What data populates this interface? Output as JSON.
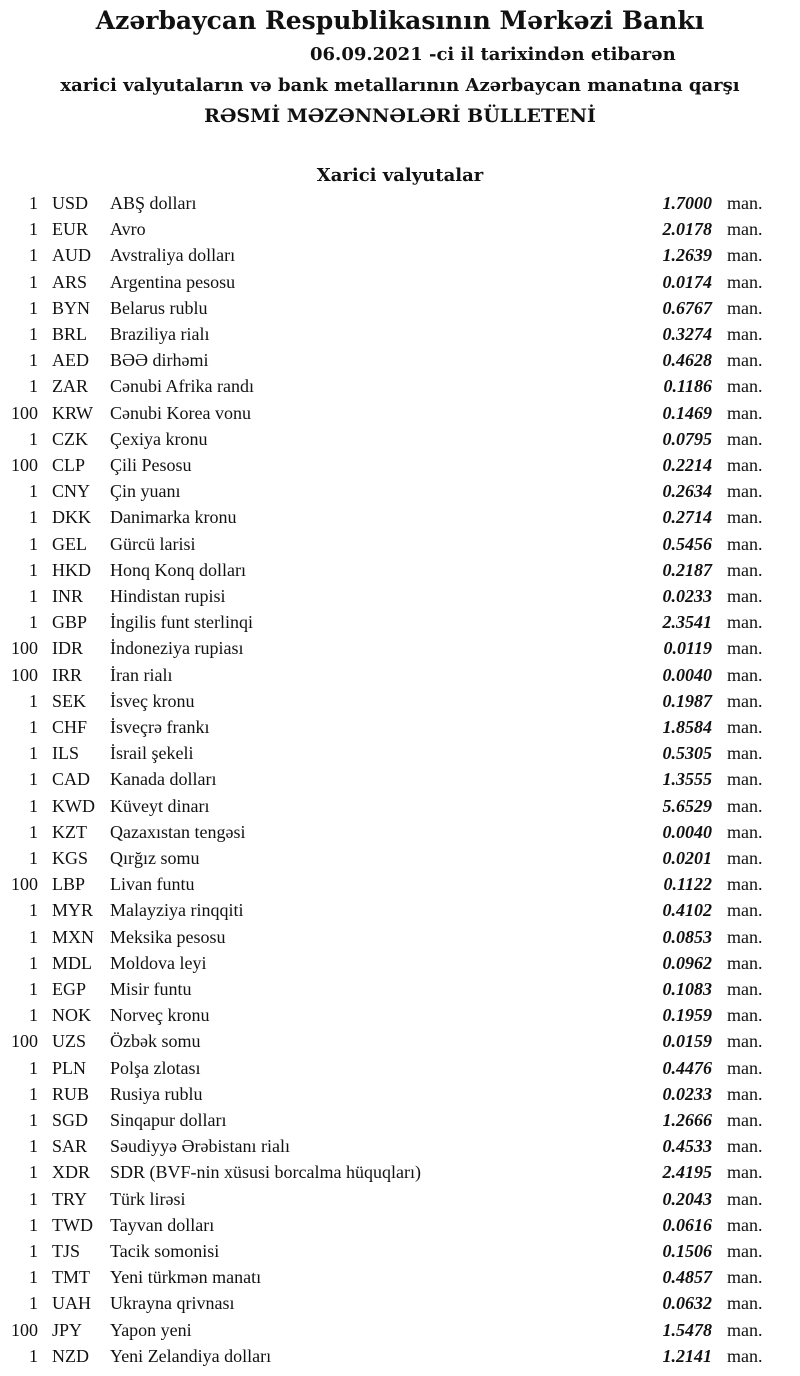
{
  "header": {
    "title": "Azərbaycan Respublikasının Mərkəzi Bankı",
    "date_line": "06.09.2021 -ci il tarixindən etibarən",
    "subtitle": "xarici valyutaların və bank metallarının Azərbaycan manatına qarşı",
    "bulletin": "RƏSMİ MƏZƏNNƏLƏRİ BÜLLETENİ",
    "section": "Xarici valyutalar"
  },
  "rows": [
    {
      "qty": "1",
      "code": "USD",
      "name": "ABŞ dolları",
      "rate": "1.7000",
      "unit": "man."
    },
    {
      "qty": "1",
      "code": "EUR",
      "name": "Avro",
      "rate": "2.0178",
      "unit": "man."
    },
    {
      "qty": "1",
      "code": "AUD",
      "name": "Avstraliya dolları",
      "rate": "1.2639",
      "unit": "man."
    },
    {
      "qty": "1",
      "code": "ARS",
      "name": "Argentina pesosu",
      "rate": "0.0174",
      "unit": "man."
    },
    {
      "qty": "1",
      "code": "BYN",
      "name": "Belarus rublu",
      "rate": "0.6767",
      "unit": "man."
    },
    {
      "qty": "1",
      "code": "BRL",
      "name": "Braziliya rialı",
      "rate": "0.3274",
      "unit": "man."
    },
    {
      "qty": "1",
      "code": "AED",
      "name": "BƏƏ dirhəmi",
      "rate": "0.4628",
      "unit": "man."
    },
    {
      "qty": "1",
      "code": "ZAR",
      "name": "Cənubi Afrika randı",
      "rate": "0.1186",
      "unit": "man."
    },
    {
      "qty": "100",
      "code": "KRW",
      "name": "Cənubi Korea vonu",
      "rate": "0.1469",
      "unit": "man."
    },
    {
      "qty": "1",
      "code": "CZK",
      "name": "Çexiya kronu",
      "rate": "0.0795",
      "unit": "man."
    },
    {
      "qty": "100",
      "code": "CLP",
      "name": "Çili Pesosu",
      "rate": "0.2214",
      "unit": "man."
    },
    {
      "qty": "1",
      "code": "CNY",
      "name": "Çin yuanı",
      "rate": "0.2634",
      "unit": "man."
    },
    {
      "qty": "1",
      "code": "DKK",
      "name": "Danimarka kronu",
      "rate": "0.2714",
      "unit": "man."
    },
    {
      "qty": "1",
      "code": "GEL",
      "name": "Gürcü larisi",
      "rate": "0.5456",
      "unit": "man."
    },
    {
      "qty": "1",
      "code": "HKD",
      "name": "Honq Konq dolları",
      "rate": "0.2187",
      "unit": "man."
    },
    {
      "qty": "1",
      "code": "INR",
      "name": "Hindistan rupisi",
      "rate": "0.0233",
      "unit": "man."
    },
    {
      "qty": "1",
      "code": "GBP",
      "name": "İngilis funt sterlinqi",
      "rate": "2.3541",
      "unit": "man."
    },
    {
      "qty": "100",
      "code": "IDR",
      "name": "İndoneziya rupiası",
      "rate": "0.0119",
      "unit": "man."
    },
    {
      "qty": "100",
      "code": "IRR",
      "name": "İran rialı",
      "rate": "0.0040",
      "unit": "man."
    },
    {
      "qty": "1",
      "code": "SEK",
      "name": "İsveç kronu",
      "rate": "0.1987",
      "unit": "man."
    },
    {
      "qty": "1",
      "code": "CHF",
      "name": "İsveçrə frankı",
      "rate": "1.8584",
      "unit": "man."
    },
    {
      "qty": "1",
      "code": "ILS",
      "name": "İsrail şekeli",
      "rate": "0.5305",
      "unit": "man."
    },
    {
      "qty": "1",
      "code": "CAD",
      "name": "Kanada dolları",
      "rate": "1.3555",
      "unit": "man."
    },
    {
      "qty": "1",
      "code": "KWD",
      "name": "Küveyt dinarı",
      "rate": "5.6529",
      "unit": "man."
    },
    {
      "qty": "1",
      "code": "KZT",
      "name": "Qazaxıstan tengəsi",
      "rate": "0.0040",
      "unit": "man."
    },
    {
      "qty": "1",
      "code": "KGS",
      "name": "Qırğız somu",
      "rate": "0.0201",
      "unit": "man."
    },
    {
      "qty": "100",
      "code": "LBP",
      "name": "Livan funtu",
      "rate": "0.1122",
      "unit": "man."
    },
    {
      "qty": "1",
      "code": "MYR",
      "name": "Malayziya rinqqiti",
      "rate": "0.4102",
      "unit": "man."
    },
    {
      "qty": "1",
      "code": "MXN",
      "name": "Meksika pesosu",
      "rate": "0.0853",
      "unit": "man."
    },
    {
      "qty": "1",
      "code": "MDL",
      "name": "Moldova leyi",
      "rate": "0.0962",
      "unit": "man."
    },
    {
      "qty": "1",
      "code": "EGP",
      "name": "Misir funtu",
      "rate": "0.1083",
      "unit": "man."
    },
    {
      "qty": "1",
      "code": "NOK",
      "name": "Norveç kronu",
      "rate": "0.1959",
      "unit": "man."
    },
    {
      "qty": "100",
      "code": "UZS",
      "name": "Özbək somu",
      "rate": "0.0159",
      "unit": "man."
    },
    {
      "qty": "1",
      "code": "PLN",
      "name": "Polşa zlotası",
      "rate": "0.4476",
      "unit": "man."
    },
    {
      "qty": "1",
      "code": "RUB",
      "name": "Rusiya rublu",
      "rate": "0.0233",
      "unit": "man."
    },
    {
      "qty": "1",
      "code": "SGD",
      "name": "Sinqapur dolları",
      "rate": "1.2666",
      "unit": "man."
    },
    {
      "qty": "1",
      "code": "SAR",
      "name": "Səudiyyə Ərəbistanı rialı",
      "rate": "0.4533",
      "unit": "man."
    },
    {
      "qty": "1",
      "code": "XDR",
      "name": "SDR (BVF-nin xüsusi borcalma hüquqları)",
      "rate": "2.4195",
      "unit": "man."
    },
    {
      "qty": "1",
      "code": "TRY",
      "name": "Türk lirəsi",
      "rate": "0.2043",
      "unit": "man."
    },
    {
      "qty": "1",
      "code": "TWD",
      "name": "Tayvan dolları",
      "rate": "0.0616",
      "unit": "man."
    },
    {
      "qty": "1",
      "code": "TJS",
      "name": "Tacik somonisi",
      "rate": "0.1506",
      "unit": "man."
    },
    {
      "qty": "1",
      "code": "TMT",
      "name": "Yeni türkmən manatı",
      "rate": "0.4857",
      "unit": "man."
    },
    {
      "qty": "1",
      "code": "UAH",
      "name": "Ukrayna qrivnası",
      "rate": "0.0632",
      "unit": "man."
    },
    {
      "qty": "100",
      "code": "JPY",
      "name": "Yapon yeni",
      "rate": "1.5478",
      "unit": "man."
    },
    {
      "qty": "1",
      "code": "NZD",
      "name": "Yeni Zelandiya dolları",
      "rate": "1.2141",
      "unit": "man."
    }
  ]
}
